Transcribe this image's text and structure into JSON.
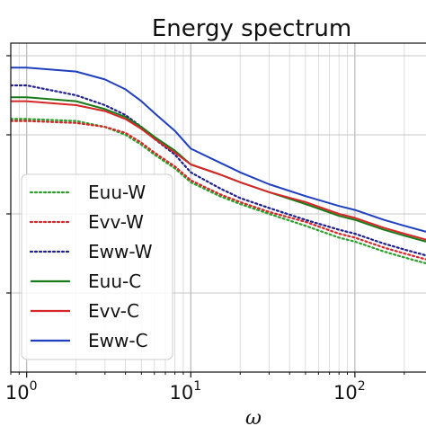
{
  "chart_data": {
    "type": "line",
    "title": "Energy spectrum",
    "xlabel": "ω",
    "ylabel": "",
    "xscale": "log",
    "yscale": "log",
    "xlim": [
      0.8,
      300
    ],
    "grid": true,
    "legend_position": "lower-left",
    "x_ticks": [
      {
        "base": "10",
        "exp": "0",
        "value": 1
      },
      {
        "base": "10",
        "exp": "1",
        "value": 10
      },
      {
        "base": "10",
        "exp": "2",
        "value": 100
      }
    ],
    "series": [
      {
        "name": "Euu-W",
        "color": "#2ca02c",
        "style": "dotted",
        "points": [
          [
            0.8,
            0.4
          ],
          [
            1,
            0.4
          ],
          [
            2,
            0.35
          ],
          [
            3,
            0.2
          ],
          [
            4,
            0.0
          ],
          [
            5,
            -0.25
          ],
          [
            6,
            -0.5
          ],
          [
            8,
            -0.85
          ],
          [
            10,
            -1.2
          ],
          [
            15,
            -1.55
          ],
          [
            20,
            -1.75
          ],
          [
            30,
            -2.0
          ],
          [
            50,
            -2.3
          ],
          [
            80,
            -2.6
          ],
          [
            100,
            -2.7
          ],
          [
            150,
            -2.95
          ],
          [
            200,
            -3.1
          ],
          [
            300,
            -3.3
          ]
        ]
      },
      {
        "name": "Evv-W",
        "color": "#d62728",
        "style": "dotted",
        "points": [
          [
            0.8,
            0.35
          ],
          [
            1,
            0.35
          ],
          [
            2,
            0.3
          ],
          [
            3,
            0.2
          ],
          [
            4,
            0.05
          ],
          [
            5,
            -0.2
          ],
          [
            6,
            -0.45
          ],
          [
            8,
            -0.8
          ],
          [
            10,
            -1.15
          ],
          [
            15,
            -1.5
          ],
          [
            20,
            -1.7
          ],
          [
            30,
            -1.95
          ],
          [
            50,
            -2.2
          ],
          [
            80,
            -2.5
          ],
          [
            100,
            -2.6
          ],
          [
            150,
            -2.85
          ],
          [
            200,
            -3.0
          ],
          [
            300,
            -3.2
          ]
        ]
      },
      {
        "name": "Eww-W",
        "color": "#1f1f8f",
        "style": "dotted",
        "points": [
          [
            0.8,
            1.25
          ],
          [
            1,
            1.25
          ],
          [
            2,
            1.0
          ],
          [
            3,
            0.75
          ],
          [
            4,
            0.5
          ],
          [
            5,
            0.2
          ],
          [
            6,
            -0.1
          ],
          [
            8,
            -0.5
          ],
          [
            10,
            -0.95
          ],
          [
            15,
            -1.35
          ],
          [
            20,
            -1.6
          ],
          [
            30,
            -1.85
          ],
          [
            50,
            -2.15
          ],
          [
            80,
            -2.4
          ],
          [
            100,
            -2.5
          ],
          [
            150,
            -2.75
          ],
          [
            200,
            -2.9
          ],
          [
            300,
            -3.1
          ]
        ]
      },
      {
        "name": "Euu-C",
        "color": "#1a7a1a",
        "style": "solid",
        "points": [
          [
            0.8,
            0.95
          ],
          [
            1,
            0.95
          ],
          [
            2,
            0.85
          ],
          [
            3,
            0.65
          ],
          [
            4,
            0.45
          ],
          [
            5,
            0.2
          ],
          [
            6,
            -0.05
          ],
          [
            8,
            -0.4
          ],
          [
            10,
            -0.75
          ],
          [
            15,
            -1.0
          ],
          [
            20,
            -1.2
          ],
          [
            30,
            -1.45
          ],
          [
            50,
            -1.75
          ],
          [
            80,
            -2.05
          ],
          [
            100,
            -2.15
          ],
          [
            150,
            -2.4
          ],
          [
            200,
            -2.55
          ],
          [
            300,
            -2.75
          ]
        ]
      },
      {
        "name": "Evv-C",
        "color": "#d62728",
        "style": "solid",
        "points": [
          [
            0.8,
            0.85
          ],
          [
            1,
            0.85
          ],
          [
            2,
            0.75
          ],
          [
            3,
            0.6
          ],
          [
            4,
            0.4
          ],
          [
            5,
            0.15
          ],
          [
            6,
            -0.1
          ],
          [
            8,
            -0.45
          ],
          [
            10,
            -0.75
          ],
          [
            15,
            -1.0
          ],
          [
            20,
            -1.2
          ],
          [
            30,
            -1.45
          ],
          [
            50,
            -1.7
          ],
          [
            80,
            -2.0
          ],
          [
            100,
            -2.1
          ],
          [
            150,
            -2.35
          ],
          [
            200,
            -2.5
          ],
          [
            300,
            -2.7
          ]
        ]
      },
      {
        "name": "Eww-C",
        "color": "#1f3fbf",
        "style": "solid",
        "points": [
          [
            0.8,
            1.7
          ],
          [
            1,
            1.7
          ],
          [
            2,
            1.6
          ],
          [
            3,
            1.4
          ],
          [
            4,
            1.15
          ],
          [
            5,
            0.85
          ],
          [
            6,
            0.55
          ],
          [
            8,
            0.1
          ],
          [
            10,
            -0.35
          ],
          [
            15,
            -0.7
          ],
          [
            20,
            -0.95
          ],
          [
            30,
            -1.25
          ],
          [
            50,
            -1.55
          ],
          [
            80,
            -1.8
          ],
          [
            100,
            -1.9
          ],
          [
            150,
            -2.15
          ],
          [
            200,
            -2.3
          ],
          [
            300,
            -2.5
          ]
        ]
      }
    ]
  }
}
